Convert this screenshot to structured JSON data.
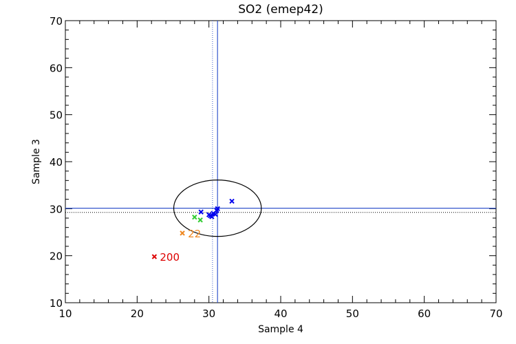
{
  "chart_data": {
    "type": "scatter",
    "title": "SO2 (emep42)",
    "xlabel": "Sample 4",
    "ylabel": "Sample 3",
    "xlim": [
      10,
      70
    ],
    "ylim": [
      10,
      70
    ],
    "xticks": [
      "10",
      "20",
      "30",
      "40",
      "50",
      "60",
      "70"
    ],
    "yticks": [
      "10",
      "20",
      "30",
      "40",
      "50",
      "60",
      "70"
    ],
    "grid": false,
    "reference_lines": {
      "solid_x": 31.2,
      "solid_y": 30.1,
      "dotted_x": 30.5,
      "dotted_y": 29.2,
      "color": "#3355cc"
    },
    "ellipse": {
      "cx": 31.2,
      "cy": 30.1,
      "rx": 6.1,
      "ry": 6.0,
      "color": "#000000"
    },
    "points": [
      {
        "x": 22.4,
        "y": 19.8,
        "color": "#dd0000",
        "label": "200"
      },
      {
        "x": 26.3,
        "y": 24.8,
        "color": "#ee8822",
        "label": "22"
      },
      {
        "x": 28.0,
        "y": 28.2,
        "color": "#33cc33",
        "label": ""
      },
      {
        "x": 28.8,
        "y": 27.6,
        "color": "#33cc33",
        "label": ""
      },
      {
        "x": 28.9,
        "y": 29.3,
        "color": "#0000ee",
        "label": ""
      },
      {
        "x": 30.0,
        "y": 28.7,
        "color": "#0000ee",
        "label": ""
      },
      {
        "x": 30.2,
        "y": 28.5,
        "color": "#0000ee",
        "label": ""
      },
      {
        "x": 30.4,
        "y": 28.3,
        "color": "#0000ee",
        "label": ""
      },
      {
        "x": 30.6,
        "y": 29.0,
        "color": "#0000ee",
        "label": ""
      },
      {
        "x": 30.9,
        "y": 28.8,
        "color": "#0000ee",
        "label": ""
      },
      {
        "x": 31.1,
        "y": 29.6,
        "color": "#0000ee",
        "label": ""
      },
      {
        "x": 31.2,
        "y": 30.0,
        "color": "#0000ee",
        "label": ""
      },
      {
        "x": 33.2,
        "y": 31.6,
        "color": "#0000ee",
        "label": ""
      }
    ]
  }
}
